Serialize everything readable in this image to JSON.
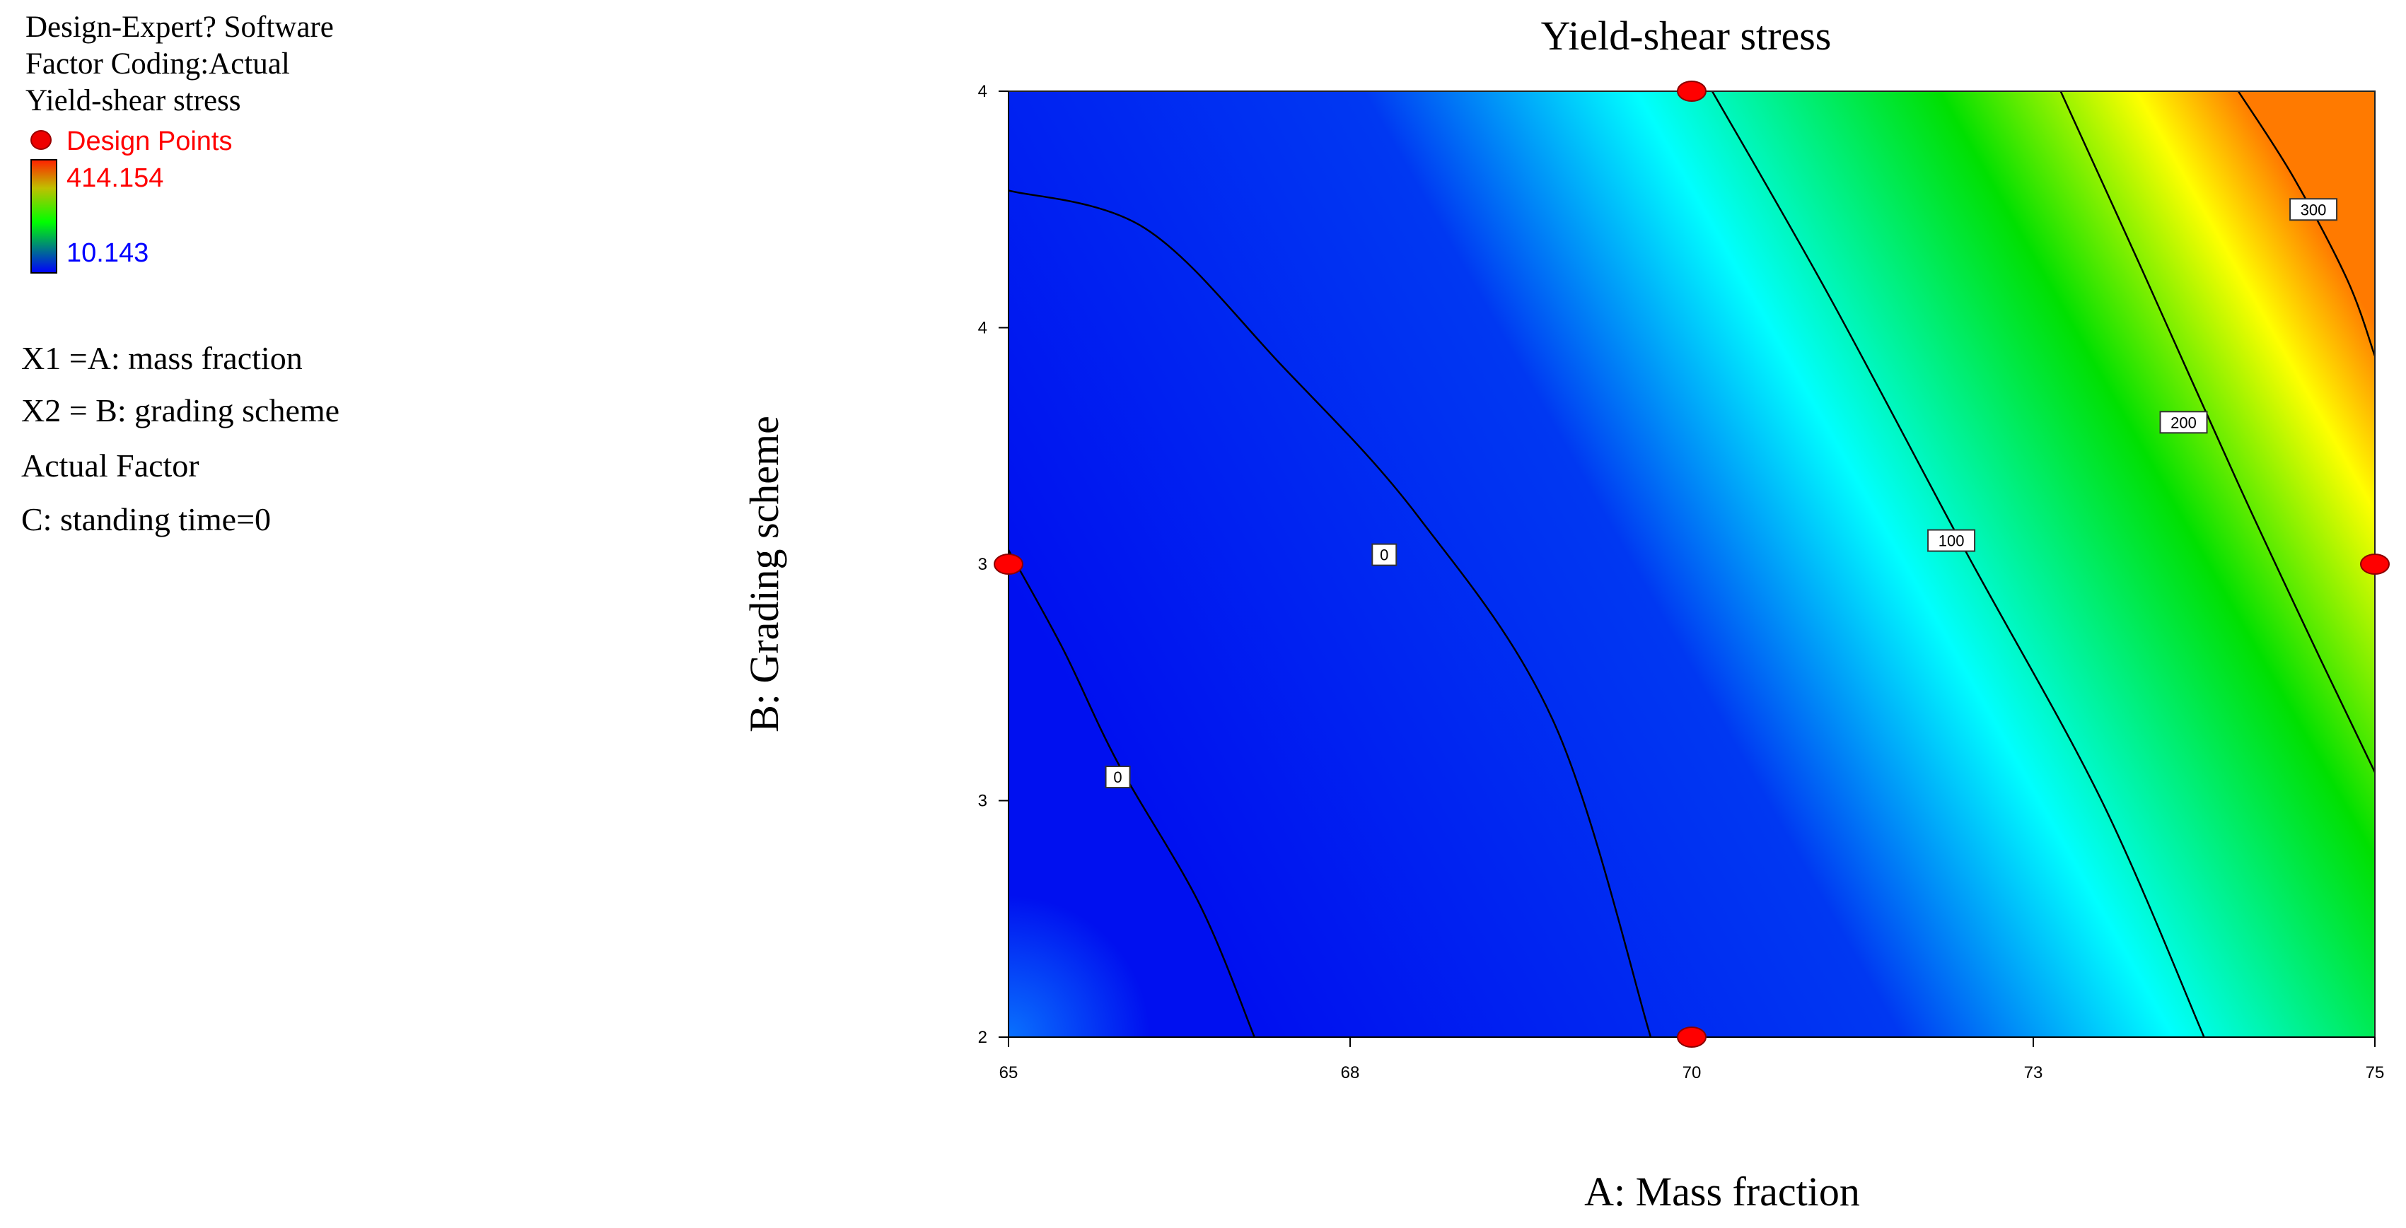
{
  "legend_panel": {
    "software": "Design-Expert? Software",
    "factor_coding": "Factor Coding:Actual",
    "response": "Yield-shear stress",
    "design_points_label": "Design Points",
    "scale_max": "414.154",
    "scale_min": "10.143",
    "x1": "X1 =A: mass fraction",
    "x2": "X2 = B: grading scheme",
    "actual_factor": "Actual Factor",
    "actual_factor_value": "C: standing time=0"
  },
  "colors": {
    "design_point": "#ff0000",
    "max_value_text": "#ff0000",
    "min_value_text": "#0000ff",
    "contour_line": "#000000"
  },
  "chart_data": {
    "type": "contour",
    "title": "Yield-shear stress",
    "xlabel": "A: Mass fraction",
    "ylabel": "B: Grading scheme",
    "xlim": [
      65,
      75
    ],
    "ylim": [
      2,
      4
    ],
    "x_ticks": [
      {
        "value": 65,
        "label": "65"
      },
      {
        "value": 67.5,
        "label": "68"
      },
      {
        "value": 70,
        "label": "70"
      },
      {
        "value": 72.5,
        "label": "73"
      },
      {
        "value": 75,
        "label": "75"
      }
    ],
    "y_ticks": [
      {
        "value": 2,
        "label": "2"
      },
      {
        "value": 2.5,
        "label": "3"
      },
      {
        "value": 3,
        "label": "3"
      },
      {
        "value": 3.5,
        "label": "4"
      },
      {
        "value": 4,
        "label": "4"
      }
    ],
    "color_range": [
      10.143,
      414.154
    ],
    "contour_lines": [
      {
        "label": "0",
        "label_at": [
          65.8,
          2.55
        ],
        "points": [
          [
            65,
            3.03
          ],
          [
            65.4,
            2.82
          ],
          [
            65.8,
            2.58
          ],
          [
            66.4,
            2.28
          ],
          [
            66.8,
            2.0
          ]
        ]
      },
      {
        "label": "0",
        "label_at": [
          67.75,
          3.02
        ],
        "points": [
          [
            65,
            3.79
          ],
          [
            66.0,
            3.71
          ],
          [
            67.0,
            3.42
          ],
          [
            68.0,
            3.1
          ],
          [
            69.0,
            2.66
          ],
          [
            69.7,
            2.0
          ]
        ]
      },
      {
        "label": "100",
        "label_at": [
          71.9,
          3.05
        ],
        "points": [
          [
            70.15,
            4.0
          ],
          [
            71.0,
            3.57
          ],
          [
            72.0,
            3.03
          ],
          [
            73.0,
            2.5
          ],
          [
            73.75,
            2.0
          ]
        ]
      },
      {
        "label": "200",
        "label_at": [
          73.6,
          3.3
        ],
        "points": [
          [
            72.7,
            4.0
          ],
          [
            73.3,
            3.62
          ],
          [
            74.0,
            3.17
          ],
          [
            74.6,
            2.8
          ],
          [
            75,
            2.56
          ]
        ]
      },
      {
        "label": "300",
        "label_at": [
          74.55,
          3.75
        ],
        "points": [
          [
            74.0,
            4.0
          ],
          [
            74.4,
            3.82
          ],
          [
            74.8,
            3.6
          ],
          [
            75,
            3.44
          ]
        ]
      }
    ],
    "design_points": [
      {
        "x": 70,
        "y": 4
      },
      {
        "x": 65,
        "y": 3
      },
      {
        "x": 75,
        "y": 3
      },
      {
        "x": 70,
        "y": 2
      }
    ]
  }
}
